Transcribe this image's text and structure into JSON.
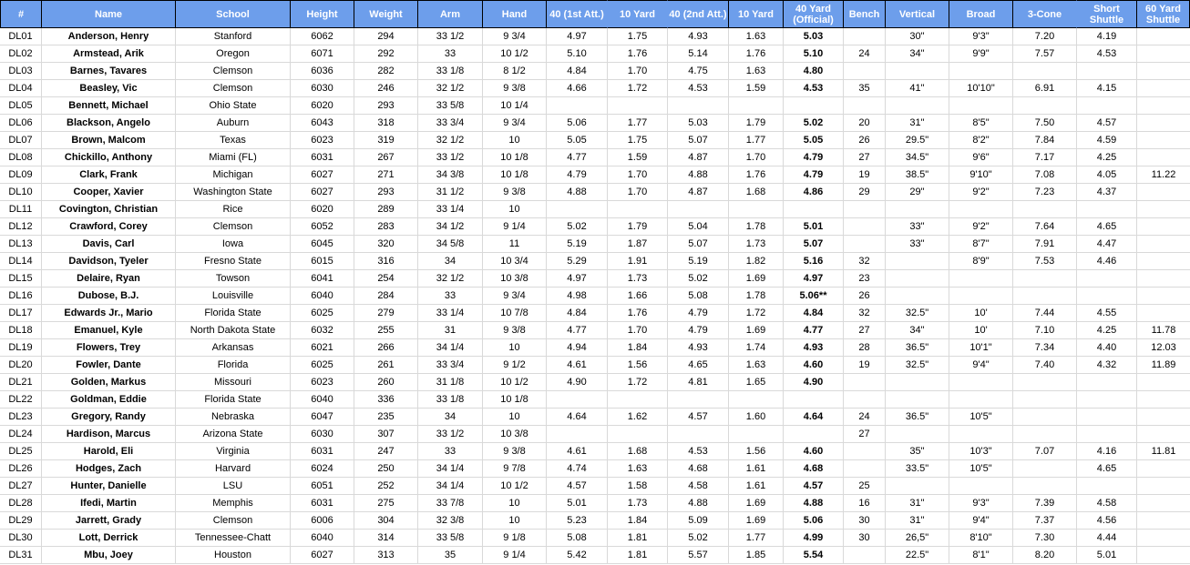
{
  "colors": {
    "header_bg": "#6d9eeb",
    "header_text": "#ffffff",
    "grid": "#d9d9d9",
    "border": "#000000",
    "text": "#000000"
  },
  "table": {
    "columns": [
      {
        "key": "num",
        "label": "#",
        "width": 45,
        "group_merge": false,
        "bold": false
      },
      {
        "key": "name",
        "label": "Name",
        "width": 147,
        "group_merge": false,
        "bold": true
      },
      {
        "key": "school",
        "label": "School",
        "width": 126,
        "group_merge": false,
        "bold": false
      },
      {
        "key": "height",
        "label": "Height",
        "width": 70,
        "group_merge": false,
        "bold": false
      },
      {
        "key": "weight",
        "label": "Weight",
        "width": 70,
        "group_merge": false,
        "bold": false
      },
      {
        "key": "arm",
        "label": "Arm",
        "width": 71,
        "group_merge": false,
        "bold": false
      },
      {
        "key": "hand",
        "label": "Hand",
        "width": 70,
        "group_merge": false,
        "bold": false
      },
      {
        "key": "forty_first",
        "label": "40 (1st Att.)",
        "width": 67,
        "group_merge": false,
        "bold": false
      },
      {
        "key": "ten_first",
        "label": "10 Yard",
        "width": 66,
        "group_merge": true,
        "bold": false
      },
      {
        "key": "forty_second",
        "label": "40 (2nd Att.)",
        "width": 67,
        "group_merge": true,
        "bold": false
      },
      {
        "key": "ten_second",
        "label": "10 Yard",
        "width": 60,
        "group_merge": false,
        "bold": false
      },
      {
        "key": "forty_official",
        "label": "40 Yard\n(Official)",
        "width": 66,
        "group_merge": false,
        "bold": true
      },
      {
        "key": "bench",
        "label": "Bench",
        "width": 46,
        "group_merge": false,
        "bold": false
      },
      {
        "key": "vertical",
        "label": "Vertical",
        "width": 70,
        "group_merge": false,
        "bold": false
      },
      {
        "key": "broad",
        "label": "Broad",
        "width": 70,
        "group_merge": false,
        "bold": false
      },
      {
        "key": "three_cone",
        "label": "3-Cone",
        "width": 70,
        "group_merge": false,
        "bold": false
      },
      {
        "key": "short_shuttle",
        "label": "Short Shuttle",
        "width": 66,
        "group_merge": true,
        "bold": false
      },
      {
        "key": "sixty_shuttle",
        "label": "60 Yard\nShuttle",
        "width": 59,
        "group_merge": false,
        "bold": false
      }
    ],
    "rows": [
      [
        "DL01",
        "Anderson, Henry",
        "Stanford",
        "6062",
        "294",
        "33 1/2",
        "9 3/4",
        "4.97",
        "1.75",
        "4.93",
        "1.63",
        "5.03",
        "",
        "30\"",
        "9'3\"",
        "7.20",
        "4.19",
        ""
      ],
      [
        "DL02",
        "Armstead, Arik",
        "Oregon",
        "6071",
        "292",
        "33",
        "10 1/2",
        "5.10",
        "1.76",
        "5.14",
        "1.76",
        "5.10",
        "24",
        "34\"",
        "9'9\"",
        "7.57",
        "4.53",
        ""
      ],
      [
        "DL03",
        "Barnes, Tavares",
        "Clemson",
        "6036",
        "282",
        "33 1/8",
        "8 1/2",
        "4.84",
        "1.70",
        "4.75",
        "1.63",
        "4.80",
        "",
        "",
        "",
        "",
        "",
        ""
      ],
      [
        "DL04",
        "Beasley, Vic",
        "Clemson",
        "6030",
        "246",
        "32 1/2",
        "9 3/8",
        "4.66",
        "1.72",
        "4.53",
        "1.59",
        "4.53",
        "35",
        "41\"",
        "10'10\"",
        "6.91",
        "4.15",
        ""
      ],
      [
        "DL05",
        "Bennett, Michael",
        "Ohio State",
        "6020",
        "293",
        "33 5/8",
        "10 1/4",
        "",
        "",
        "",
        "",
        "",
        "",
        "",
        "",
        "",
        "",
        ""
      ],
      [
        "DL06",
        "Blackson, Angelo",
        "Auburn",
        "6043",
        "318",
        "33 3/4",
        "9 3/4",
        "5.06",
        "1.77",
        "5.03",
        "1.79",
        "5.02",
        "20",
        "31\"",
        "8'5\"",
        "7.50",
        "4.57",
        ""
      ],
      [
        "DL07",
        "Brown, Malcom",
        "Texas",
        "6023",
        "319",
        "32 1/2",
        "10",
        "5.05",
        "1.75",
        "5.07",
        "1.77",
        "5.05",
        "26",
        "29.5\"",
        "8'2\"",
        "7.84",
        "4.59",
        ""
      ],
      [
        "DL08",
        "Chickillo, Anthony",
        "Miami (FL)",
        "6031",
        "267",
        "33 1/2",
        "10 1/8",
        "4.77",
        "1.59",
        "4.87",
        "1.70",
        "4.79",
        "27",
        "34.5\"",
        "9'6\"",
        "7.17",
        "4.25",
        ""
      ],
      [
        "DL09",
        "Clark, Frank",
        "Michigan",
        "6027",
        "271",
        "34 3/8",
        "10 1/8",
        "4.79",
        "1.70",
        "4.88",
        "1.76",
        "4.79",
        "19",
        "38.5\"",
        "9'10\"",
        "7.08",
        "4.05",
        "11.22"
      ],
      [
        "DL10",
        "Cooper, Xavier",
        "Washington State",
        "6027",
        "293",
        "31 1/2",
        "9 3/8",
        "4.88",
        "1.70",
        "4.87",
        "1.68",
        "4.86",
        "29",
        "29\"",
        "9'2\"",
        "7.23",
        "4.37",
        ""
      ],
      [
        "DL11",
        "Covington, Christian",
        "Rice",
        "6020",
        "289",
        "33 1/4",
        "10",
        "",
        "",
        "",
        "",
        "",
        "",
        "",
        "",
        "",
        "",
        ""
      ],
      [
        "DL12",
        "Crawford, Corey",
        "Clemson",
        "6052",
        "283",
        "34 1/2",
        "9 1/4",
        "5.02",
        "1.79",
        "5.04",
        "1.78",
        "5.01",
        "",
        "33\"",
        "9'2\"",
        "7.64",
        "4.65",
        ""
      ],
      [
        "DL13",
        "Davis, Carl",
        "Iowa",
        "6045",
        "320",
        "34 5/8",
        "11",
        "5.19",
        "1.87",
        "5.07",
        "1.73",
        "5.07",
        "",
        "33\"",
        "8'7\"",
        "7.91",
        "4.47",
        ""
      ],
      [
        "DL14",
        "Davidson, Tyeler",
        "Fresno State",
        "6015",
        "316",
        "34",
        "10 3/4",
        "5.29",
        "1.91",
        "5.19",
        "1.82",
        "5.16",
        "32",
        "",
        "8'9\"",
        "7.53",
        "4.46",
        ""
      ],
      [
        "DL15",
        "Delaire, Ryan",
        "Towson",
        "6041",
        "254",
        "32 1/2",
        "10 3/8",
        "4.97",
        "1.73",
        "5.02",
        "1.69",
        "4.97",
        "23",
        "",
        "",
        "",
        "",
        ""
      ],
      [
        "DL16",
        "Dubose, B.J.",
        "Louisville",
        "6040",
        "284",
        "33",
        "9 3/4",
        "4.98",
        "1.66",
        "5.08",
        "1.78",
        "5.06**",
        "26",
        "",
        "",
        "",
        "",
        ""
      ],
      [
        "DL17",
        "Edwards Jr., Mario",
        "Florida State",
        "6025",
        "279",
        "33 1/4",
        "10 7/8",
        "4.84",
        "1.76",
        "4.79",
        "1.72",
        "4.84",
        "32",
        "32.5\"",
        "10'",
        "7.44",
        "4.55",
        ""
      ],
      [
        "DL18",
        "Emanuel, Kyle",
        "North Dakota State",
        "6032",
        "255",
        "31",
        "9 3/8",
        "4.77",
        "1.70",
        "4.79",
        "1.69",
        "4.77",
        "27",
        "34\"",
        "10'",
        "7.10",
        "4.25",
        "11.78"
      ],
      [
        "DL19",
        "Flowers, Trey",
        "Arkansas",
        "6021",
        "266",
        "34 1/4",
        "10",
        "4.94",
        "1.84",
        "4.93",
        "1.74",
        "4.93",
        "28",
        "36.5\"",
        "10'1\"",
        "7.34",
        "4.40",
        "12.03"
      ],
      [
        "DL20",
        "Fowler, Dante",
        "Florida",
        "6025",
        "261",
        "33 3/4",
        "9 1/2",
        "4.61",
        "1.56",
        "4.65",
        "1.63",
        "4.60",
        "19",
        "32.5\"",
        "9'4\"",
        "7.40",
        "4.32",
        "11.89"
      ],
      [
        "DL21",
        "Golden, Markus",
        "Missouri",
        "6023",
        "260",
        "31 1/8",
        "10 1/2",
        "4.90",
        "1.72",
        "4.81",
        "1.65",
        "4.90",
        "",
        "",
        "",
        "",
        "",
        ""
      ],
      [
        "DL22",
        "Goldman, Eddie",
        "Florida State",
        "6040",
        "336",
        "33 1/8",
        "10 1/8",
        "",
        "",
        "",
        "",
        "",
        "",
        "",
        "",
        "",
        "",
        ""
      ],
      [
        "DL23",
        "Gregory, Randy",
        "Nebraska",
        "6047",
        "235",
        "34",
        "10",
        "4.64",
        "1.62",
        "4.57",
        "1.60",
        "4.64",
        "24",
        "36.5\"",
        "10'5\"",
        "",
        "",
        ""
      ],
      [
        "DL24",
        "Hardison, Marcus",
        "Arizona State",
        "6030",
        "307",
        "33 1/2",
        "10 3/8",
        "",
        "",
        "",
        "",
        "",
        "27",
        "",
        "",
        "",
        "",
        ""
      ],
      [
        "DL25",
        "Harold, Eli",
        "Virginia",
        "6031",
        "247",
        "33",
        "9 3/8",
        "4.61",
        "1.68",
        "4.53",
        "1.56",
        "4.60",
        "",
        "35\"",
        "10'3\"",
        "7.07",
        "4.16",
        "11.81"
      ],
      [
        "DL26",
        "Hodges, Zach",
        "Harvard",
        "6024",
        "250",
        "34 1/4",
        "9 7/8",
        "4.74",
        "1.63",
        "4.68",
        "1.61",
        "4.68",
        "",
        "33.5\"",
        "10'5\"",
        "",
        "4.65",
        ""
      ],
      [
        "DL27",
        "Hunter, Danielle",
        "LSU",
        "6051",
        "252",
        "34 1/4",
        "10 1/2",
        "4.57",
        "1.58",
        "4.58",
        "1.61",
        "4.57",
        "25",
        "",
        "",
        "",
        "",
        ""
      ],
      [
        "DL28",
        "Ifedi, Martin",
        "Memphis",
        "6031",
        "275",
        "33 7/8",
        "10",
        "5.01",
        "1.73",
        "4.88",
        "1.69",
        "4.88",
        "16",
        "31\"",
        "9'3\"",
        "7.39",
        "4.58",
        ""
      ],
      [
        "DL29",
        "Jarrett, Grady",
        "Clemson",
        "6006",
        "304",
        "32 3/8",
        "10",
        "5.23",
        "1.84",
        "5.09",
        "1.69",
        "5.06",
        "30",
        "31\"",
        "9'4\"",
        "7.37",
        "4.56",
        ""
      ],
      [
        "DL30",
        "Lott, Derrick",
        "Tennessee-Chatt",
        "6040",
        "314",
        "33 5/8",
        "9 1/8",
        "5.08",
        "1.81",
        "5.02",
        "1.77",
        "4.99",
        "30",
        "26,5\"",
        "8'10\"",
        "7.30",
        "4.44",
        ""
      ],
      [
        "DL31",
        "Mbu, Joey",
        "Houston",
        "6027",
        "313",
        "35",
        "9 1/4",
        "5.42",
        "1.81",
        "5.57",
        "1.85",
        "5.54",
        "",
        "22.5\"",
        "8'1\"",
        "8.20",
        "5.01",
        ""
      ]
    ]
  }
}
